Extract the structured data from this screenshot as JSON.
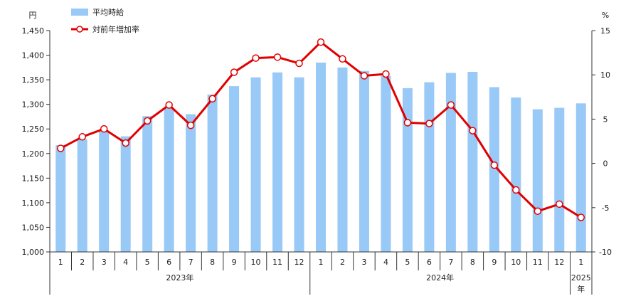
{
  "chart_data": {
    "type": "bar+line",
    "left_axis": {
      "unit": "円",
      "ylim": [
        1000,
        1450
      ],
      "ticks": [
        1000,
        1050,
        1100,
        1150,
        1200,
        1250,
        1300,
        1350,
        1400,
        1450
      ],
      "tick_labels": [
        "1,000",
        "1,050",
        "1,100",
        "1,150",
        "1,200",
        "1,250",
        "1,300",
        "1,350",
        "1,400",
        "1,450"
      ]
    },
    "right_axis": {
      "unit": "%",
      "ylim": [
        -10,
        15
      ],
      "ticks": [
        -10,
        -5,
        0,
        5,
        10,
        15
      ],
      "tick_labels": [
        "-10",
        "-5",
        "0",
        "5",
        "10",
        "15"
      ]
    },
    "categories": [
      "1",
      "2",
      "3",
      "4",
      "5",
      "6",
      "7",
      "8",
      "9",
      "10",
      "11",
      "12",
      "1",
      "2",
      "3",
      "4",
      "5",
      "6",
      "7",
      "8",
      "9",
      "10",
      "11",
      "12",
      "1"
    ],
    "year_groups": [
      {
        "label": "2023年",
        "count": 12
      },
      {
        "label": "2024年",
        "count": 12
      },
      {
        "label": "2025年",
        "count": 1,
        "lines": [
          "2025",
          "年"
        ]
      }
    ],
    "series": [
      {
        "name": "平均時給",
        "type": "bar",
        "axis": "left",
        "color": "#99c9f7",
        "values": [
          1217,
          1229,
          1245,
          1235,
          1276,
          1292,
          1280,
          1320,
          1337,
          1355,
          1365,
          1355,
          1385,
          1375,
          1368,
          1358,
          1333,
          1345,
          1364,
          1366,
          1335,
          1314,
          1290,
          1293,
          1302
        ]
      },
      {
        "name": "対前年増加率",
        "type": "line",
        "axis": "right",
        "color": "#e00000",
        "values": [
          1.7,
          3.0,
          3.9,
          2.3,
          4.8,
          6.6,
          4.3,
          7.3,
          10.3,
          11.9,
          12.0,
          11.3,
          13.7,
          11.8,
          9.9,
          10.1,
          4.6,
          4.5,
          6.6,
          3.7,
          -0.2,
          -3.0,
          -5.4,
          -4.6,
          -6.1
        ]
      }
    ]
  }
}
